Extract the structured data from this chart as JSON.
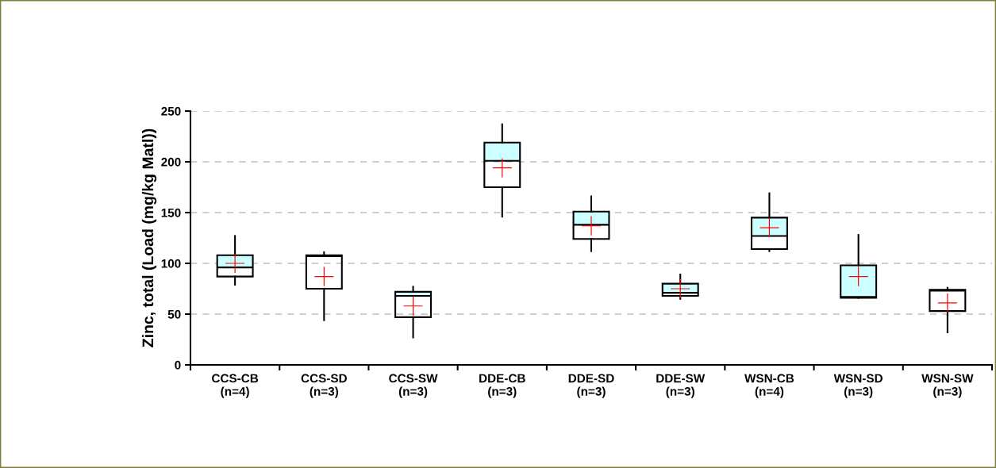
{
  "chart_data": {
    "type": "box",
    "ylabel": "Zinc, total (Load (mg/kg Matl))",
    "categories": [
      "CCS-CB\n(n=4)",
      "CCS-SD\n(n=3)",
      "CCS-SW\n(n=3)",
      "DDE-CB\n(n=3)",
      "DDE-SD\n(n=3)",
      "DDE-SW\n(n=3)",
      "WSN-CB\n(n=4)",
      "WSN-SD\n(n=3)",
      "WSN-SW\n(n=3)"
    ],
    "series": [
      {
        "color": "#ccffff",
        "boxes": [
          {
            "low": 79,
            "q1": 87,
            "median": 96,
            "q3": 108,
            "high": 127
          },
          {
            "low": 44,
            "q1": 75,
            "median": 107,
            "q3": 108,
            "high": 111
          },
          {
            "low": 27,
            "q1": 47,
            "median": 68,
            "q3": 72,
            "high": 77
          },
          {
            "low": 146,
            "q1": 175,
            "median": 201,
            "q3": 219,
            "high": 237
          },
          {
            "low": 112,
            "q1": 124,
            "median": 138,
            "q3": 151,
            "high": 166
          },
          {
            "low": 65,
            "q1": 68,
            "median": 71,
            "q3": 80,
            "high": 89
          },
          {
            "low": 112,
            "q1": 114,
            "median": 127,
            "q3": 145,
            "high": 169
          },
          {
            "low": 66,
            "q1": 66,
            "median": 67,
            "q3": 98,
            "high": 128
          },
          {
            "low": 32,
            "q1": 53,
            "median": 73,
            "q3": 74,
            "high": 76
          }
        ]
      },
      {
        "type": "scatter",
        "color": "#ff0000",
        "marker": "cross",
        "x": [
          "CCS-CB\n(n=4)",
          "CCS-SD\n(n=3)",
          "CCS-SW\n(n=3)",
          "DDE-CB\n(n=3)",
          "DDE-SD\n(n=3)",
          "DDE-SW\n(n=3)",
          "WSN-CB\n(n=4)",
          "WSN-SD\n(n=3)",
          "WSN-SW\n(n=3)"
        ],
        "values": [
          100,
          87,
          58,
          194,
          137,
          75,
          135,
          87,
          61
        ]
      }
    ],
    "ylim": [
      0,
      250
    ],
    "yticks": [
      0,
      50,
      100,
      150,
      200,
      250
    ],
    "grid": "y"
  }
}
